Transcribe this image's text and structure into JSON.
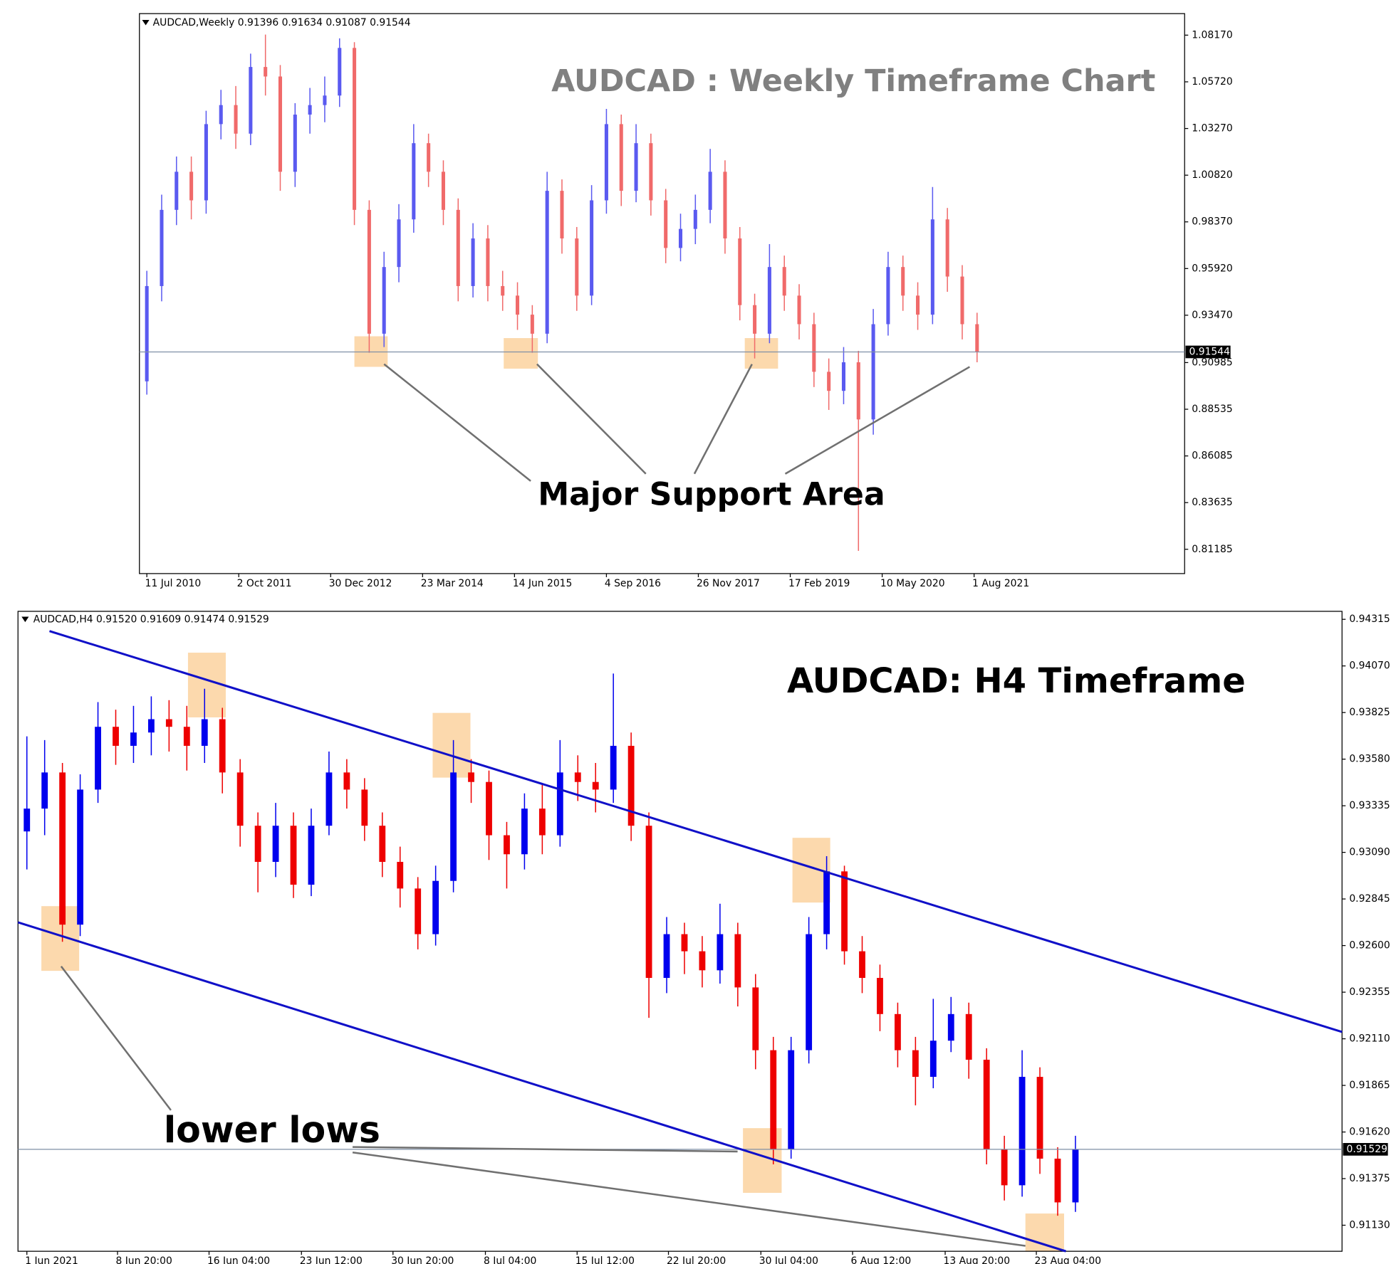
{
  "chart_data": [
    {
      "type": "candlestick",
      "header": "AUDCAD,Weekly  0.91396 0.91634 0.91087 0.91544",
      "title": "AUDCAD : Weekly Timeframe Chart",
      "annotation": "Major Support Area",
      "up_color": "#5a5af0",
      "down_color": "#f06a6a",
      "last_price": 0.91544,
      "ylim": [
        0.7991,
        1.093
      ],
      "yticks": [
        {
          "value": 1.0817,
          "label": "1.08170"
        },
        {
          "value": 1.0572,
          "label": "1.05720"
        },
        {
          "value": 1.0327,
          "label": "1.03270"
        },
        {
          "value": 1.0082,
          "label": "1.00820"
        },
        {
          "value": 0.9837,
          "label": "0.98370"
        },
        {
          "value": 0.9592,
          "label": "0.95920"
        },
        {
          "value": 0.9347,
          "label": "0.93470"
        },
        0.90985,
        0.88535,
        0.86085,
        0.83635,
        0.81185
      ],
      "xlim": [
        -0.5,
        70
      ],
      "xticks": [
        {
          "value": 0,
          "label": "11 Jul 2010"
        },
        {
          "value": 6.2,
          "label": "2 Oct 2011"
        },
        {
          "value": 12.4,
          "label": "30 Dec 2012"
        },
        {
          "value": 18.6,
          "label": "23 Mar 2014"
        },
        {
          "value": 24.8,
          "label": "14 Jun 2015"
        },
        {
          "value": 31.0,
          "label": "4 Sep 2016"
        },
        {
          "value": 37.2,
          "label": "26 Nov 2017"
        },
        {
          "value": 43.4,
          "label": "17 Feb 2019"
        },
        {
          "value": 49.6,
          "label": "10 May 2020"
        },
        {
          "value": 55.8,
          "label": "1 Aug 2021"
        }
      ],
      "candles": [
        [
          0.9,
          0.958,
          0.893,
          0.95
        ],
        [
          0.95,
          0.998,
          0.942,
          0.99
        ],
        [
          0.99,
          1.018,
          0.982,
          1.01
        ],
        [
          1.01,
          1.018,
          0.985,
          0.995
        ],
        [
          0.995,
          1.042,
          0.988,
          1.035
        ],
        [
          1.035,
          1.053,
          1.027,
          1.045
        ],
        [
          1.045,
          1.055,
          1.022,
          1.03
        ],
        [
          1.03,
          1.072,
          1.024,
          1.065
        ],
        [
          1.065,
          1.082,
          1.05,
          1.06
        ],
        [
          1.06,
          1.066,
          1.0,
          1.01
        ],
        [
          1.01,
          1.046,
          1.002,
          1.04
        ],
        [
          1.04,
          1.054,
          1.03,
          1.045
        ],
        [
          1.045,
          1.06,
          1.036,
          1.05
        ],
        [
          1.05,
          1.08,
          1.044,
          1.075
        ],
        [
          1.075,
          1.078,
          0.982,
          0.99
        ],
        [
          0.99,
          0.995,
          0.915,
          0.925
        ],
        [
          0.925,
          0.968,
          0.918,
          0.96
        ],
        [
          0.96,
          0.993,
          0.952,
          0.985
        ],
        [
          0.985,
          1.035,
          0.978,
          1.025
        ],
        [
          1.025,
          1.03,
          1.002,
          1.01
        ],
        [
          1.01,
          1.016,
          0.982,
          0.99
        ],
        [
          0.99,
          0.996,
          0.942,
          0.95
        ],
        [
          0.95,
          0.983,
          0.944,
          0.975
        ],
        [
          0.975,
          0.982,
          0.942,
          0.95
        ],
        [
          0.95,
          0.958,
          0.937,
          0.945
        ],
        [
          0.945,
          0.952,
          0.927,
          0.935
        ],
        [
          0.935,
          0.94,
          0.915,
          0.925
        ],
        [
          0.925,
          1.01,
          0.92,
          1.0
        ],
        [
          1.0,
          1.006,
          0.967,
          0.975
        ],
        [
          0.975,
          0.981,
          0.937,
          0.945
        ],
        [
          0.945,
          1.003,
          0.94,
          0.995
        ],
        [
          0.995,
          1.043,
          0.988,
          1.035
        ],
        [
          1.035,
          1.04,
          0.992,
          1.0
        ],
        [
          1.0,
          1.035,
          0.994,
          1.025
        ],
        [
          1.025,
          1.03,
          0.987,
          0.995
        ],
        [
          0.995,
          1.001,
          0.962,
          0.97
        ],
        [
          0.97,
          0.988,
          0.963,
          0.98
        ],
        [
          0.98,
          0.998,
          0.972,
          0.99
        ],
        [
          0.99,
          1.022,
          0.983,
          1.01
        ],
        [
          1.01,
          1.016,
          0.967,
          0.975
        ],
        [
          0.975,
          0.981,
          0.932,
          0.94
        ],
        [
          0.94,
          0.946,
          0.912,
          0.925
        ],
        [
          0.925,
          0.972,
          0.92,
          0.96
        ],
        [
          0.96,
          0.966,
          0.937,
          0.945
        ],
        [
          0.945,
          0.951,
          0.922,
          0.93
        ],
        [
          0.93,
          0.936,
          0.897,
          0.905
        ],
        [
          0.905,
          0.912,
          0.885,
          0.895
        ],
        [
          0.895,
          0.918,
          0.888,
          0.91
        ],
        [
          0.91,
          0.916,
          0.811,
          0.88
        ],
        [
          0.88,
          0.938,
          0.872,
          0.93
        ],
        [
          0.93,
          0.968,
          0.924,
          0.96
        ],
        [
          0.96,
          0.966,
          0.937,
          0.945
        ],
        [
          0.945,
          0.952,
          0.927,
          0.935
        ],
        [
          0.935,
          1.002,
          0.93,
          0.985
        ],
        [
          0.985,
          0.991,
          0.947,
          0.955
        ],
        [
          0.955,
          0.961,
          0.922,
          0.93
        ],
        [
          0.93,
          0.936,
          0.91,
          0.91544
        ]
      ]
    },
    {
      "type": "candlestick",
      "header": "AUDCAD,H4  0.91520 0.91609 0.91474 0.91529",
      "title": "AUDCAD: H4 Timeframe",
      "annotation": "lower lows",
      "up_color": "#0000ee",
      "down_color": "#ee0000",
      "last_price": 0.91529,
      "ylim": [
        0.90993,
        0.94357
      ],
      "yticks": [
        0.94315,
        {
          "value": 0.9407,
          "label": "0.94070"
        },
        0.93825,
        {
          "value": 0.9358,
          "label": "0.93580"
        },
        0.93335,
        {
          "value": 0.9309,
          "label": "0.93090"
        },
        0.92845,
        {
          "value": 0.926,
          "label": "0.92600"
        },
        0.92355,
        {
          "value": 0.9211,
          "label": "0.92110"
        },
        0.91865,
        {
          "value": 0.9162,
          "label": "0.91620"
        },
        0.91375,
        {
          "value": 0.9113,
          "label": "0.91130"
        }
      ],
      "xlim": [
        -0.5,
        74
      ],
      "xticks": [
        {
          "value": 0,
          "label": "1 Jun 2021"
        },
        {
          "value": 5.1,
          "label": "8 Jun 20:00"
        },
        {
          "value": 10.25,
          "label": "16 Jun 04:00"
        },
        {
          "value": 15.45,
          "label": "23 Jun 12:00"
        },
        {
          "value": 20.6,
          "label": "30 Jun 20:00"
        },
        {
          "value": 25.8,
          "label": "8 Jul 04:00"
        },
        {
          "value": 30.96,
          "label": "15 Jul 12:00"
        },
        {
          "value": 36.1,
          "label": "22 Jul 20:00"
        },
        {
          "value": 41.3,
          "label": "30 Jul 04:00"
        },
        {
          "value": 46.46,
          "label": "6 Aug 12:00"
        },
        {
          "value": 51.67,
          "label": "13 Aug 20:00"
        },
        {
          "value": 56.8,
          "label": "23 Aug 04:00"
        }
      ],
      "candles": [
        [
          0.932,
          0.937,
          0.93,
          0.9332
        ],
        [
          0.9332,
          0.9368,
          0.9318,
          0.9351
        ],
        [
          0.9351,
          0.9356,
          0.9262,
          0.9271
        ],
        [
          0.9271,
          0.935,
          0.9265,
          0.9342
        ],
        [
          0.9342,
          0.9388,
          0.9335,
          0.9375
        ],
        [
          0.9375,
          0.9384,
          0.9355,
          0.9365
        ],
        [
          0.9365,
          0.9386,
          0.9356,
          0.9372
        ],
        [
          0.9372,
          0.9391,
          0.936,
          0.9379
        ],
        [
          0.9379,
          0.9389,
          0.9362,
          0.9375
        ],
        [
          0.9375,
          0.9386,
          0.9352,
          0.9365
        ],
        [
          0.9365,
          0.9395,
          0.9356,
          0.9379
        ],
        [
          0.9379,
          0.9385,
          0.934,
          0.9351
        ],
        [
          0.9351,
          0.9358,
          0.9312,
          0.9323
        ],
        [
          0.9323,
          0.933,
          0.9288,
          0.9304
        ],
        [
          0.9304,
          0.9335,
          0.9296,
          0.9323
        ],
        [
          0.9323,
          0.933,
          0.9285,
          0.9292
        ],
        [
          0.9292,
          0.9332,
          0.9286,
          0.9323
        ],
        [
          0.9323,
          0.9362,
          0.9318,
          0.9351
        ],
        [
          0.9351,
          0.9358,
          0.9332,
          0.9342
        ],
        [
          0.9342,
          0.9348,
          0.9315,
          0.9323
        ],
        [
          0.9323,
          0.933,
          0.9296,
          0.9304
        ],
        [
          0.9304,
          0.9312,
          0.928,
          0.929
        ],
        [
          0.929,
          0.9296,
          0.9258,
          0.9266
        ],
        [
          0.9266,
          0.9302,
          0.926,
          0.9294
        ],
        [
          0.9294,
          0.9368,
          0.9288,
          0.9351
        ],
        [
          0.9351,
          0.9358,
          0.9335,
          0.9346
        ],
        [
          0.9346,
          0.9352,
          0.9305,
          0.9318
        ],
        [
          0.9318,
          0.9325,
          0.929,
          0.9308
        ],
        [
          0.9308,
          0.934,
          0.93,
          0.9332
        ],
        [
          0.9332,
          0.9345,
          0.9308,
          0.9318
        ],
        [
          0.9318,
          0.9368,
          0.9312,
          0.9351
        ],
        [
          0.9351,
          0.936,
          0.9336,
          0.9346
        ],
        [
          0.9346,
          0.9356,
          0.933,
          0.9342
        ],
        [
          0.9342,
          0.9403,
          0.9335,
          0.9365
        ],
        [
          0.9365,
          0.9372,
          0.9315,
          0.9323
        ],
        [
          0.9323,
          0.933,
          0.9222,
          0.9243
        ],
        [
          0.9243,
          0.9275,
          0.9235,
          0.9266
        ],
        [
          0.9266,
          0.9272,
          0.9245,
          0.9257
        ],
        [
          0.9257,
          0.9265,
          0.9238,
          0.9247
        ],
        [
          0.9247,
          0.9282,
          0.924,
          0.9266
        ],
        [
          0.9266,
          0.9272,
          0.9228,
          0.9238
        ],
        [
          0.9238,
          0.9245,
          0.9195,
          0.9205
        ],
        [
          0.9205,
          0.9212,
          0.9145,
          0.9153
        ],
        [
          0.9153,
          0.9212,
          0.9148,
          0.9205
        ],
        [
          0.9205,
          0.9275,
          0.9198,
          0.9266
        ],
        [
          0.9266,
          0.9307,
          0.9258,
          0.9299
        ],
        [
          0.9299,
          0.9302,
          0.925,
          0.9257
        ],
        [
          0.9257,
          0.9265,
          0.9235,
          0.9243
        ],
        [
          0.9243,
          0.925,
          0.9215,
          0.9224
        ],
        [
          0.9224,
          0.923,
          0.9196,
          0.9205
        ],
        [
          0.9205,
          0.9212,
          0.9176,
          0.9191
        ],
        [
          0.9191,
          0.9232,
          0.9185,
          0.921
        ],
        [
          0.921,
          0.9233,
          0.9204,
          0.9224
        ],
        [
          0.9224,
          0.923,
          0.919,
          0.92
        ],
        [
          0.92,
          0.9206,
          0.9145,
          0.9153
        ],
        [
          0.9153,
          0.916,
          0.9126,
          0.9134
        ],
        [
          0.9134,
          0.9205,
          0.9128,
          0.9191
        ],
        [
          0.9191,
          0.9196,
          0.914,
          0.9148
        ],
        [
          0.9148,
          0.9154,
          0.9118,
          0.9125
        ],
        [
          0.9125,
          0.916,
          0.912,
          0.91529
        ]
      ]
    }
  ]
}
